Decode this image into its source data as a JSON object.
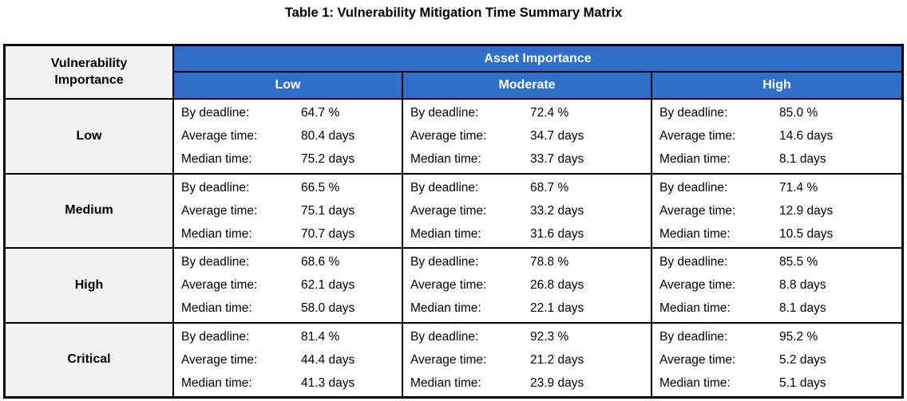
{
  "title": "Table 1: Vulnerability Mitigation Time Summary Matrix",
  "table": {
    "corner_header": "Vulnerability Importance",
    "group_header": "Asset Importance",
    "columns": [
      "Low",
      "Moderate",
      "High"
    ],
    "metric_labels": {
      "deadline": "By deadline:",
      "average": "Average time:",
      "median": "Median time:"
    },
    "rows": [
      {
        "name": "Low",
        "cells": [
          {
            "deadline": "64.7 %",
            "average": "80.4 days",
            "median": "75.2 days"
          },
          {
            "deadline": "72.4 %",
            "average": "34.7 days",
            "median": "33.7 days"
          },
          {
            "deadline": "85.0 %",
            "average": "14.6 days",
            "median": "8.1 days"
          }
        ]
      },
      {
        "name": "Medium",
        "cells": [
          {
            "deadline": "66.5 %",
            "average": "75.1 days",
            "median": "70.7 days"
          },
          {
            "deadline": "68.7 %",
            "average": "33.2 days",
            "median": "31.6 days"
          },
          {
            "deadline": "71.4 %",
            "average": "12.9 days",
            "median": "10.5 days"
          }
        ]
      },
      {
        "name": "High",
        "cells": [
          {
            "deadline": "68.6 %",
            "average": "62.1 days",
            "median": "58.0 days"
          },
          {
            "deadline": "78.8 %",
            "average": "26.8 days",
            "median": "22.1 days"
          },
          {
            "deadline": "85.5 %",
            "average": "8.8 days",
            "median": "8.1 days"
          }
        ]
      },
      {
        "name": "Critical",
        "cells": [
          {
            "deadline": "81.4 %",
            "average": "44.4 days",
            "median": "41.3 days"
          },
          {
            "deadline": "92.3 %",
            "average": "21.2 days",
            "median": "23.9 days"
          },
          {
            "deadline": "95.2 %",
            "average": "5.2 days",
            "median": "5.1 days"
          }
        ]
      }
    ]
  },
  "colors": {
    "header_blue": "#2F6FC7",
    "header_text": "#FFFFFF",
    "row_header_bg": "#F1F1F1",
    "cell_bg": "#FFFFFF",
    "border": "#000000"
  }
}
